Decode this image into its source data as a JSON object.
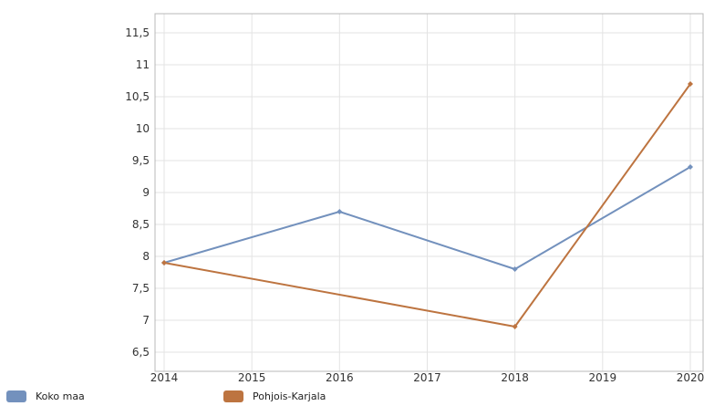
{
  "chart_data": {
    "type": "line",
    "x": [
      2014,
      2015,
      2016,
      2017,
      2018,
      2019,
      2020
    ],
    "xticks": [
      "2014",
      "2015",
      "2016",
      "2017",
      "2018",
      "2019",
      "2020"
    ],
    "yticks": [
      "6,5",
      "7",
      "7,5",
      "8",
      "8,5",
      "9",
      "9,5",
      "10",
      "10,5",
      "11",
      "11,5"
    ],
    "ylim": [
      6.2,
      11.8
    ],
    "grid": true,
    "legend_position": "bottom-left",
    "series": [
      {
        "name": "Koko maa",
        "color": "#7391bd",
        "points": [
          [
            2014,
            7.9
          ],
          [
            2016,
            8.7
          ],
          [
            2018,
            7.8
          ],
          [
            2020,
            9.4
          ]
        ]
      },
      {
        "name": "Pohjois-Karjala",
        "color": "#bd7440",
        "points": [
          [
            2014,
            7.9
          ],
          [
            2018,
            6.9
          ],
          [
            2020,
            10.7
          ]
        ]
      }
    ]
  }
}
